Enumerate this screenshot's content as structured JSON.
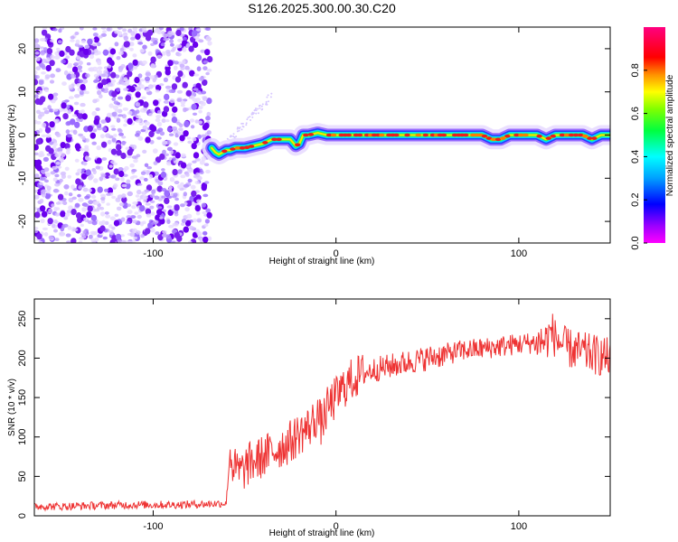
{
  "figure": {
    "title": "S126.2025.300.00.30.C20"
  },
  "chart_data": [
    {
      "type": "heatmap",
      "name": "spectrogram",
      "xlabel": "Height of straight line (km)",
      "ylabel": "Frequency (Hz)",
      "xlim": [
        -165,
        150
      ],
      "ylim": [
        -25,
        25
      ],
      "xticks": [
        -100,
        0,
        100
      ],
      "xtick_labels": [
        "-100",
        "0",
        "100"
      ],
      "yticks": [
        -20,
        -10,
        0,
        10,
        20
      ],
      "ytick_labels": [
        "-20",
        "-10",
        "0",
        "10",
        "20"
      ],
      "grid": false,
      "colorbar": {
        "label": "Normalized spectral amplitude",
        "range": [
          0,
          1
        ],
        "ticks": [
          0.0,
          0.2,
          0.4,
          0.6,
          0.8
        ],
        "tick_labels": [
          "0.0",
          "0.2",
          "0.4",
          "0.6",
          "0.8"
        ],
        "colormap": "rainbow (magenta-blue-cyan-green-yellow-red-magenta)"
      },
      "noise_region": {
        "x_range": [
          -165,
          -69
        ],
        "description_color": "#7a22ee"
      },
      "signal_track": {
        "x": [
          -68,
          -66,
          -64,
          -62,
          -60,
          -58,
          -55,
          -50,
          -45,
          -40,
          -35,
          -30,
          -25,
          -22,
          -20,
          -18,
          -15,
          -10,
          -5,
          0,
          10,
          20,
          30,
          40,
          50,
          60,
          70,
          80,
          85,
          90,
          95,
          100,
          105,
          110,
          115,
          120,
          125,
          130,
          135,
          140,
          145,
          150
        ],
        "frequency_hz": [
          -3,
          -4,
          -4.5,
          -4,
          -3.5,
          -3.5,
          -3,
          -3,
          -2.5,
          -2,
          -1,
          -1,
          -1,
          -2.5,
          -2,
          0,
          0,
          0.5,
          0,
          0,
          0,
          0,
          0,
          0,
          0,
          0,
          0,
          0,
          -1,
          -1,
          0,
          0,
          0,
          0,
          -1,
          0,
          0,
          0,
          0,
          -1,
          0,
          0
        ]
      }
    },
    {
      "type": "line",
      "name": "snr",
      "xlabel": "Height of straight line (km)",
      "ylabel": "SNR (10 * v/v)",
      "xlim": [
        -165,
        150
      ],
      "ylim": [
        0,
        275
      ],
      "xticks": [
        -100,
        0,
        100
      ],
      "xtick_labels": [
        "-100",
        "0",
        "100"
      ],
      "yticks": [
        0,
        50,
        100,
        150,
        200,
        250
      ],
      "ytick_labels": [
        "0",
        "50",
        "100",
        "150",
        "200",
        "250"
      ],
      "grid": false,
      "color": "#ee3333",
      "series": [
        {
          "name": "",
          "x": [
            -165,
            -150,
            -130,
            -110,
            -90,
            -70,
            -60,
            -58,
            -56,
            -52,
            -48,
            -44,
            -40,
            -36,
            -32,
            -28,
            -24,
            -20,
            -16,
            -12,
            -10,
            -8,
            -5,
            0,
            5,
            10,
            15,
            20,
            30,
            40,
            50,
            60,
            70,
            80,
            90,
            100,
            110,
            115,
            118,
            120,
            125,
            130,
            140,
            150
          ],
          "y": [
            12,
            12,
            13,
            14,
            14,
            15,
            16,
            80,
            60,
            55,
            65,
            70,
            75,
            80,
            85,
            90,
            95,
            105,
            110,
            120,
            130,
            115,
            135,
            150,
            165,
            175,
            180,
            185,
            190,
            195,
            200,
            205,
            210,
            212,
            215,
            218,
            220,
            222,
            235,
            225,
            215,
            210,
            205,
            200
          ]
        }
      ]
    }
  ]
}
